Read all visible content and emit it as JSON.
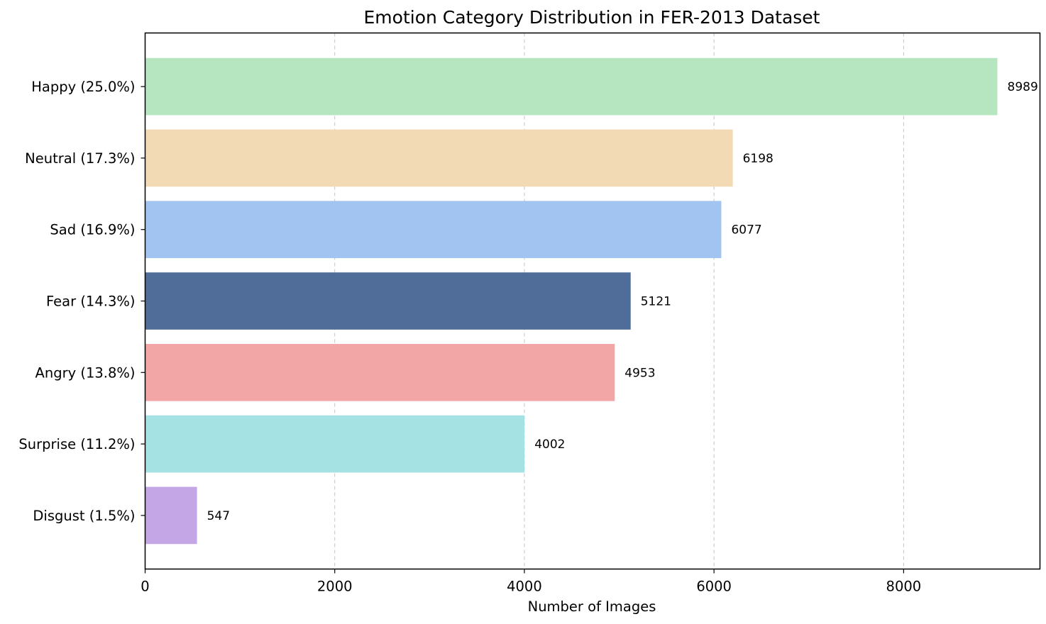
{
  "chart_data": {
    "type": "bar",
    "orientation": "horizontal",
    "title": "Emotion Category Distribution in FER-2013 Dataset",
    "xlabel": "Number of Images",
    "ylabel": "",
    "xlim": [
      0,
      9438
    ],
    "xticks": [
      0,
      2000,
      4000,
      6000,
      8000
    ],
    "grid": "x-dashed",
    "categories": [
      "Happy (25.0%)",
      "Neutral (17.3%)",
      "Sad (16.9%)",
      "Fear (14.3%)",
      "Angry (13.8%)",
      "Surprise (11.2%)",
      "Disgust (1.5%)"
    ],
    "values": [
      8989,
      6198,
      6077,
      5121,
      4953,
      4002,
      547
    ],
    "colors": [
      "#b5e6bf",
      "#f2dab5",
      "#a2c4f1",
      "#4f6d98",
      "#f2a6a6",
      "#a5e2e3",
      "#c4a5e6"
    ]
  }
}
